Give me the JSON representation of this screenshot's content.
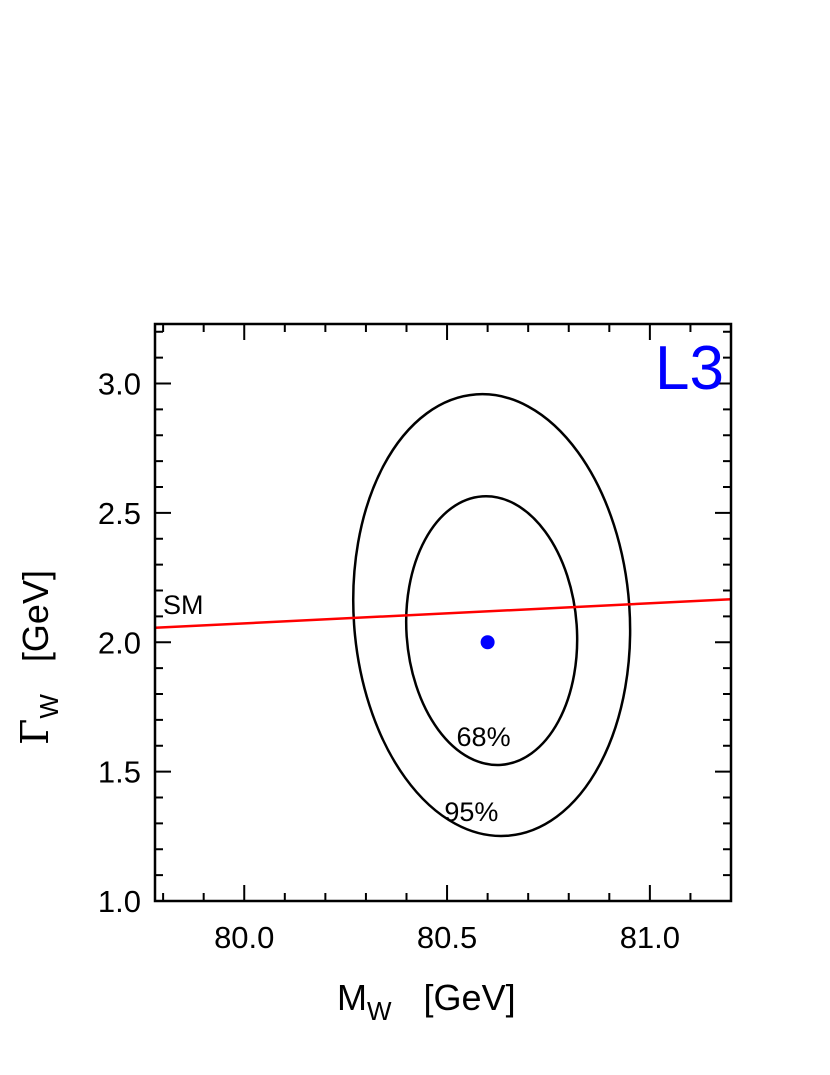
{
  "chart_data": {
    "type": "scatter",
    "title": "",
    "experiment_label": "L3",
    "xlabel": {
      "symbol": "M",
      "subscript": "W",
      "unit": "[GeV]"
    },
    "ylabel": {
      "symbol": "Γ",
      "subscript": "W",
      "unit": "[GeV]"
    },
    "xlim": [
      79.78,
      81.2
    ],
    "ylim": [
      1.0,
      3.23
    ],
    "x_ticks": [
      {
        "value": 80.0,
        "label": "80.0"
      },
      {
        "value": 80.5,
        "label": "80.5"
      },
      {
        "value": 81.0,
        "label": "81.0"
      }
    ],
    "y_ticks": [
      {
        "value": 1.0,
        "label": "1.0"
      },
      {
        "value": 1.5,
        "label": "1.5"
      },
      {
        "value": 2.0,
        "label": "2.0"
      },
      {
        "value": 2.5,
        "label": "2.5"
      },
      {
        "value": 3.0,
        "label": "3.0"
      }
    ],
    "grid": false,
    "best_fit": {
      "x": 80.6,
      "y": 2.0,
      "color": "#0000ff"
    },
    "sm_line": {
      "label": "SM",
      "color": "#ff0000",
      "points": [
        [
          79.78,
          2.056
        ],
        [
          81.2,
          2.166
        ]
      ]
    },
    "contours": [
      {
        "label": "68%",
        "label_pos": {
          "x": 80.59,
          "y": 1.6
        },
        "cx": 80.61,
        "cy": 2.045,
        "rx": 0.21,
        "ry": 0.52,
        "tilt_deg": -4
      },
      {
        "label": "95%",
        "label_pos": {
          "x": 80.56,
          "y": 1.31
        },
        "cx": 80.61,
        "cy": 2.105,
        "rx": 0.34,
        "ry": 0.855,
        "tilt_deg": -4
      }
    ]
  }
}
